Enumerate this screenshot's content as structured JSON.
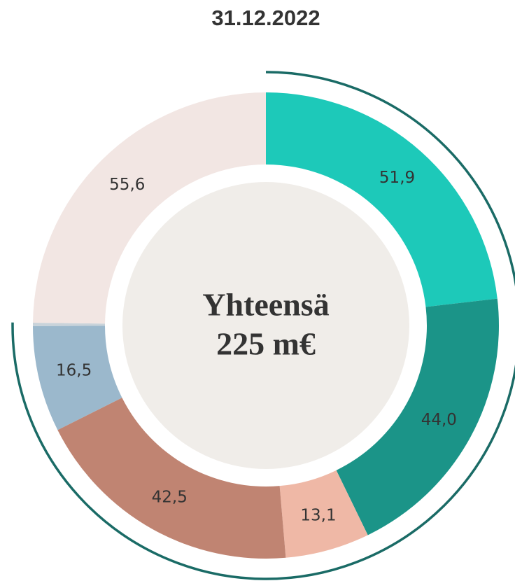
{
  "chart_data": {
    "type": "donut",
    "title": "31.12.2022",
    "annotations": [
      "Yhteensä",
      "225 m€"
    ],
    "values": [
      51.9,
      44.0,
      13.1,
      42.5,
      16.5,
      0.5,
      55.6
    ],
    "value_labels": [
      "51,9",
      "44,0",
      "13,1",
      "42,5",
      "16,5",
      null,
      "55,6"
    ],
    "colors": [
      "#1dc9b9",
      "#1b9488",
      "#efb8a6",
      "#c08472",
      "#9bb8cc",
      "#c9d3da",
      "#f2e6e3"
    ]
  }
}
